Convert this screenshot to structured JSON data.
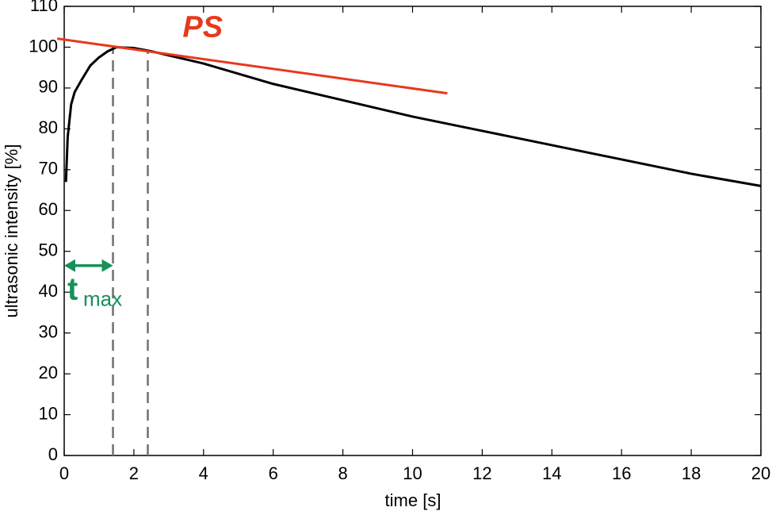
{
  "chart_data": {
    "type": "line",
    "xlabel": "time [s]",
    "ylabel": "ultrasonic intensity [%]",
    "xlim": [
      0,
      20
    ],
    "xticks": [
      0,
      2,
      4,
      6,
      8,
      10,
      12,
      14,
      16,
      18,
      20
    ],
    "ylim": [
      0,
      110
    ],
    "yticks": [
      0,
      10,
      20,
      30,
      40,
      50,
      60,
      70,
      80,
      90,
      100,
      110
    ],
    "series": [
      {
        "color": "#000000",
        "x": [
          0.05,
          0.1,
          0.2,
          0.3,
          0.5,
          0.75,
          1,
          1.25,
          1.5,
          2,
          2.5,
          3,
          4,
          5,
          6,
          8,
          10,
          12,
          14,
          16,
          18,
          20
        ],
        "values": [
          67,
          78,
          86,
          89,
          92,
          95.5,
          97.5,
          99,
          100,
          99.8,
          99,
          98,
          96,
          93.5,
          91,
          87,
          83,
          79.5,
          76,
          72.5,
          69,
          66
        ]
      },
      {
        "name": "PS",
        "color": "#e8391d",
        "x": [
          -0.2,
          11
        ],
        "values": [
          102.1,
          88.7
        ]
      }
    ],
    "label_pos": {
      "x": 3.4,
      "y": 104.5
    },
    "vlines": [
      {
        "x": 1.4,
        "top": 100
      },
      {
        "x": 2.4,
        "top": 99.3
      }
    ],
    "vline_color": "#707070",
    "tmax": {
      "text": "t",
      "sub": "max",
      "x": [
        0,
        1.4
      ],
      "y": 46.5,
      "color": "#17905a"
    }
  }
}
